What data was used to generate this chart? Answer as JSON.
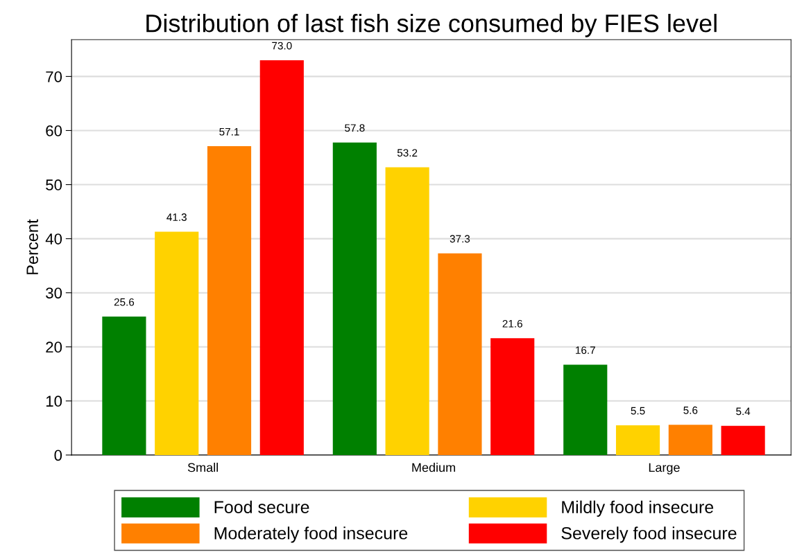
{
  "chart_data": {
    "type": "bar",
    "title": "Distribution of last fish size consumed by FIES level",
    "ylabel": "Percent",
    "categories": [
      "Small",
      "Medium",
      "Large"
    ],
    "series": [
      {
        "name": "Food secure",
        "color": "#008000",
        "values": [
          25.6,
          57.8,
          16.7
        ],
        "value_labels": [
          "25.6",
          "57.8",
          "16.7"
        ]
      },
      {
        "name": "Mildly food insecure",
        "color": "#ffd200",
        "values": [
          41.3,
          53.2,
          5.5
        ],
        "value_labels": [
          "41.3",
          "53.2",
          "5.5"
        ]
      },
      {
        "name": "Moderately food insecure",
        "color": "#ff8000",
        "values": [
          57.1,
          37.3,
          5.6
        ],
        "value_labels": [
          "57.1",
          "37.3",
          "5.6"
        ]
      },
      {
        "name": "Severely food insecure",
        "color": "#ff0000",
        "values": [
          73.0,
          21.6,
          5.4
        ],
        "value_labels": [
          "73.0",
          "21.6",
          "5.4"
        ]
      }
    ],
    "ylim": [
      0,
      76.8
    ],
    "yticks": [
      0,
      10,
      20,
      30,
      40,
      50,
      60,
      70
    ],
    "grid": "y",
    "legend": "bottom"
  }
}
